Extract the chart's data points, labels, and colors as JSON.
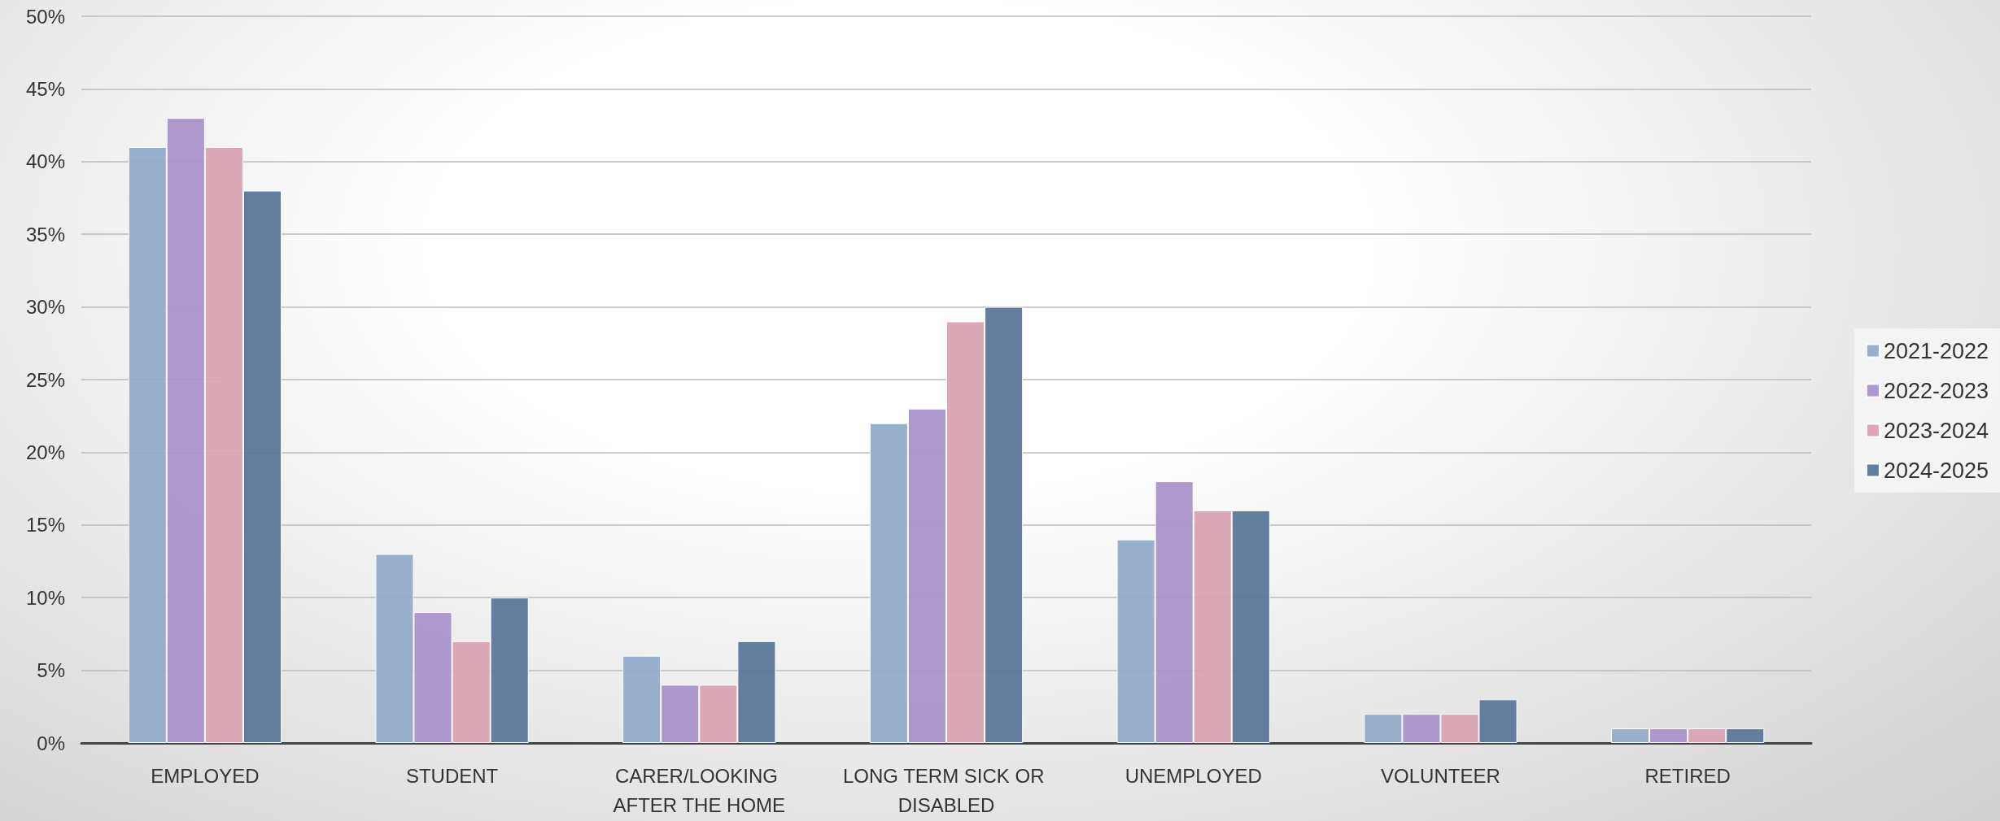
{
  "chart_data": {
    "type": "bar",
    "categories": [
      "EMPLOYED",
      "STUDENT",
      "CARER/LOOKING AFTER THE HOME",
      "LONG TERM SICK OR DISABLED",
      "UNEMPLOYED",
      "VOLUNTEER",
      "RETIRED"
    ],
    "series": [
      {
        "name": "2021-2022",
        "color": "#92acc9",
        "values": [
          41,
          13,
          6,
          22,
          14,
          2,
          1
        ]
      },
      {
        "name": "2022-2023",
        "color": "#a994c9",
        "values": [
          43,
          9,
          4,
          23,
          18,
          2,
          1
        ]
      },
      {
        "name": "2023-2024",
        "color": "#d9a3b3",
        "values": [
          41,
          7,
          4,
          29,
          16,
          2,
          1
        ]
      },
      {
        "name": "2024-2025",
        "color": "#5c7898",
        "values": [
          38,
          10,
          7,
          30,
          16,
          3,
          1
        ]
      }
    ],
    "ylim": [
      0,
      50
    ],
    "yticks": [
      {
        "value": 0,
        "label": "0%"
      },
      {
        "value": 5,
        "label": "5%"
      },
      {
        "value": 10,
        "label": "10%"
      },
      {
        "value": 15,
        "label": "15%"
      },
      {
        "value": 20,
        "label": "20%"
      },
      {
        "value": 25,
        "label": "25%"
      },
      {
        "value": 30,
        "label": "30%"
      },
      {
        "value": 35,
        "label": "35%"
      },
      {
        "value": 40,
        "label": "40%"
      },
      {
        "value": 45,
        "label": "45%"
      },
      {
        "value": 50,
        "label": "50%"
      }
    ],
    "grid": "y",
    "legend": "right"
  }
}
